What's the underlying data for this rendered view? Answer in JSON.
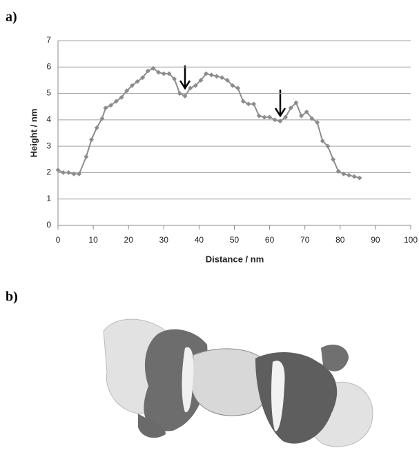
{
  "panel_labels": [
    "a)",
    "b)"
  ],
  "chart_data": {
    "type": "line",
    "x_label": "Distance / nm",
    "y_label": "Height / nm",
    "xlim": [
      0,
      100
    ],
    "xticks": [
      0,
      10,
      20,
      30,
      40,
      50,
      60,
      70,
      80,
      90,
      100
    ],
    "ylim": [
      0,
      7
    ],
    "yticks": [
      0,
      1,
      2,
      3,
      4,
      5,
      6,
      7
    ],
    "grid": true,
    "series": [
      {
        "color": "#8c8c8c",
        "x": [
          0,
          1.5,
          3,
          4.5,
          6,
          8,
          9.5,
          11,
          12.5,
          13.5,
          15,
          16.5,
          18,
          19.5,
          21,
          22.5,
          24,
          25.5,
          27,
          28.5,
          30,
          31.5,
          33,
          34.5,
          36,
          37.5,
          39,
          40.5,
          42,
          43.5,
          45,
          46.5,
          48,
          49.5,
          51,
          52.5,
          54,
          55.5,
          57,
          58.5,
          60,
          61.5,
          63,
          64.5,
          66,
          67.5,
          69,
          70.5,
          72,
          73.5,
          75,
          76.5,
          78,
          79.5,
          81,
          82.5,
          84,
          85.5
        ],
        "values": [
          2.1,
          2.0,
          2.0,
          1.95,
          1.95,
          2.6,
          3.25,
          3.7,
          4.05,
          4.45,
          4.55,
          4.7,
          4.85,
          5.1,
          5.3,
          5.45,
          5.6,
          5.85,
          5.95,
          5.8,
          5.75,
          5.75,
          5.55,
          5.0,
          4.9,
          5.2,
          5.3,
          5.5,
          5.75,
          5.7,
          5.65,
          5.6,
          5.5,
          5.3,
          5.2,
          4.7,
          4.6,
          4.6,
          4.15,
          4.1,
          4.1,
          4.0,
          3.95,
          4.1,
          4.45,
          4.65,
          4.15,
          4.3,
          4.05,
          3.9,
          3.2,
          3.0,
          2.5,
          2.05,
          1.95,
          1.9,
          1.85,
          1.8
        ]
      }
    ]
  }
}
